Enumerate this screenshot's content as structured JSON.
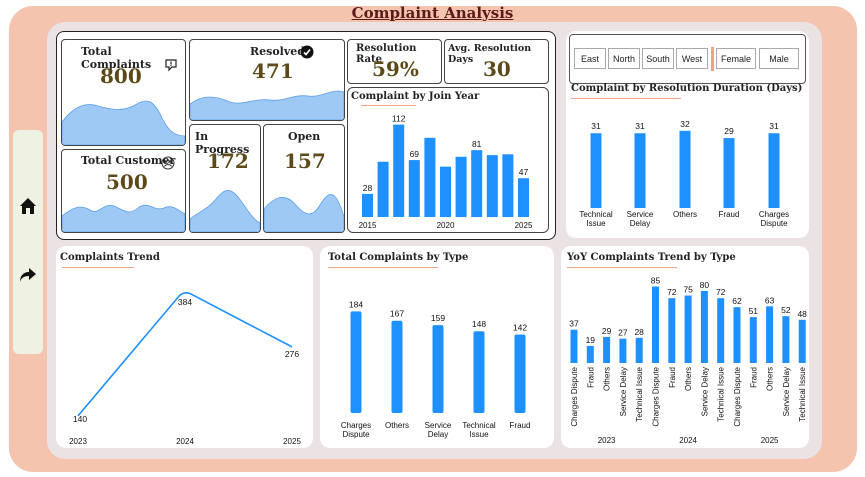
{
  "page": {
    "title": "Complaint Analysis"
  },
  "colors": {
    "accent": "#1e90ff",
    "area": "#9ec9f5",
    "frame": "#f5c4ae",
    "value": "#5c4a1a"
  },
  "nav": [
    {
      "icon": "home-icon"
    },
    {
      "icon": "share-icon"
    }
  ],
  "kpis": {
    "total_complaints": {
      "label": "Total Complaints",
      "value": "800"
    },
    "resolved": {
      "label": "Resolved",
      "value": "471"
    },
    "in_progress": {
      "label": "In Progress",
      "value": "172"
    },
    "open": {
      "label": "Open",
      "value": "157"
    },
    "total_customer": {
      "label": "Total Customer",
      "value": "500"
    },
    "resolution_rate": {
      "label": "Resolution Rate",
      "value": "59%"
    },
    "avg_resolution_days": {
      "label": "Avg. Resolution Days",
      "value": "30"
    }
  },
  "slicers": {
    "regions": [
      "East",
      "North",
      "South",
      "West"
    ],
    "genders": [
      "Female",
      "Male"
    ]
  },
  "chart_data": [
    {
      "id": "by_join_year",
      "type": "bar",
      "title": "Complaint by Join Year",
      "categories": [
        "2015",
        "2016",
        "2017",
        "2018",
        "2019",
        "2020",
        "2021",
        "2022",
        "2023",
        "2024",
        "2025"
      ],
      "values": [
        28,
        67,
        112,
        69,
        96,
        61,
        73,
        81,
        75,
        76,
        47
      ],
      "data_labels": [
        "28",
        "",
        "112",
        "69",
        "",
        "",
        "",
        "81",
        "",
        "",
        "47"
      ],
      "tick_labels": [
        "2015",
        "2020",
        "2025"
      ],
      "ylim": [
        0,
        120
      ]
    },
    {
      "id": "by_resolution_duration",
      "type": "bar",
      "title": "Complaint by Resolution Duration (Days)",
      "categories": [
        "Technical Issue",
        "Service Delay",
        "Others",
        "Fraud",
        "Charges Dispute"
      ],
      "values": [
        31,
        31,
        32,
        29,
        31
      ],
      "ylim": [
        0,
        34
      ]
    },
    {
      "id": "complaints_trend",
      "type": "line",
      "title": "Complaints Trend",
      "categories": [
        "2023",
        "2024",
        "2025"
      ],
      "values": [
        140,
        384,
        276
      ],
      "ylim": [
        120,
        400
      ]
    },
    {
      "id": "by_type",
      "type": "bar",
      "title": "Total Complaints by Type",
      "categories": [
        "Charges Dispute",
        "Others",
        "Service Delay",
        "Technical Issue",
        "Fraud"
      ],
      "values": [
        184,
        167,
        159,
        148,
        142
      ],
      "ylim": [
        0,
        190
      ]
    },
    {
      "id": "yoy_by_type",
      "type": "bar",
      "title": "YoY Complaints Trend by Type",
      "groups": [
        "2023",
        "2024",
        "2025"
      ],
      "series": [
        {
          "name": "2023",
          "categories": [
            "Charges Dispute",
            "Fraud",
            "Others",
            "Service Delay",
            "Technical Issue"
          ],
          "values": [
            37,
            19,
            29,
            27,
            28
          ]
        },
        {
          "name": "2024",
          "categories": [
            "Charges Dispute",
            "Fraud",
            "Others",
            "Service Delay",
            "Technical Issue"
          ],
          "values": [
            85,
            72,
            75,
            80,
            72
          ]
        },
        {
          "name": "2025",
          "categories": [
            "Charges Dispute",
            "Fraud",
            "Others",
            "Service Delay",
            "Technical Issue"
          ],
          "values": [
            62,
            51,
            63,
            52,
            48
          ]
        }
      ],
      "ylim": [
        0,
        90
      ]
    }
  ]
}
